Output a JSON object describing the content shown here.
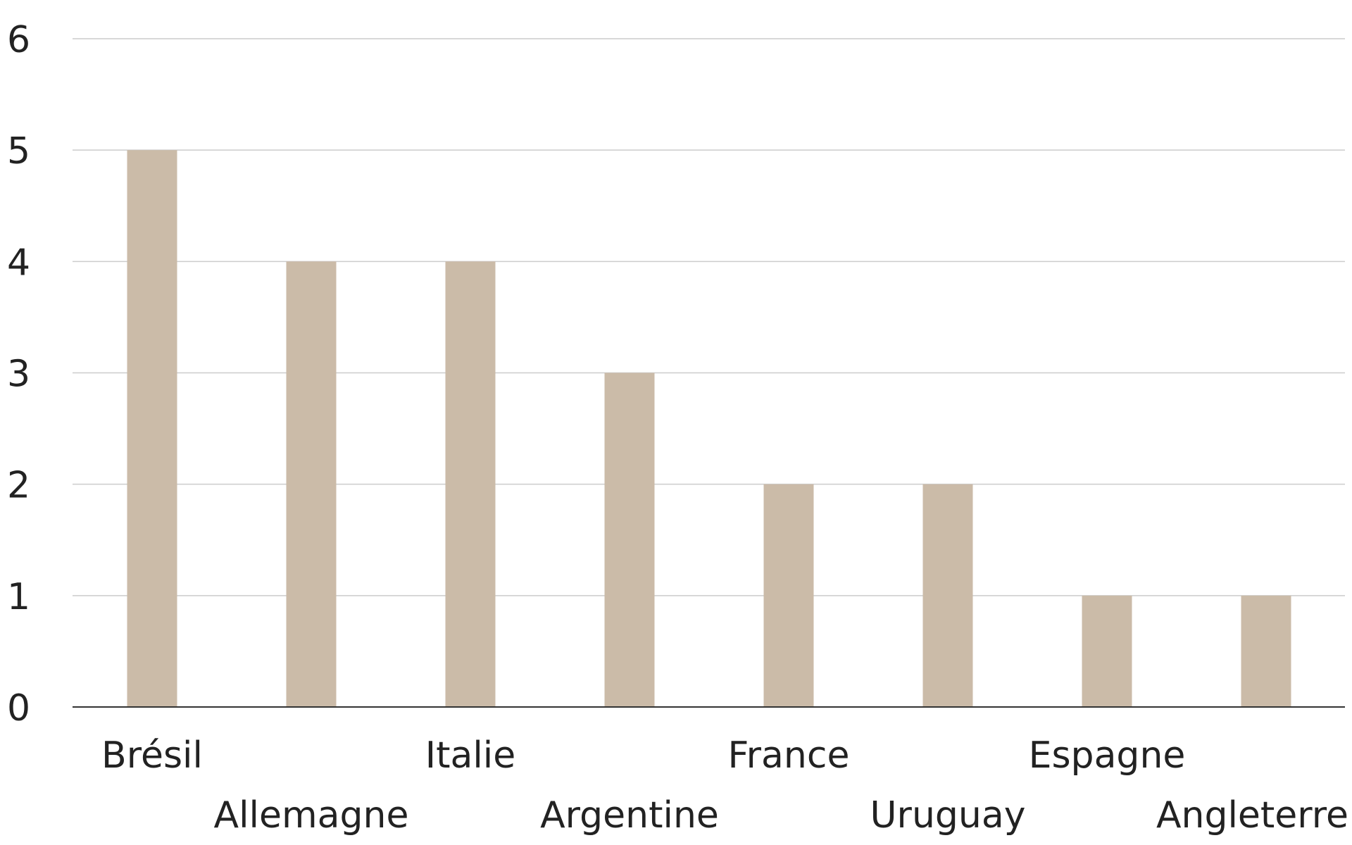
{
  "chart_data": {
    "type": "bar",
    "categories": [
      "Brésil",
      "Allemagne",
      "Italie",
      "Argentine",
      "France",
      "Uruguay",
      "Espagne",
      "Angleterre"
    ],
    "values": [
      5,
      4,
      4,
      3,
      2,
      2,
      1,
      1
    ],
    "title": "",
    "xlabel": "",
    "ylabel": "",
    "ylim": [
      0,
      6
    ],
    "yticks": [
      "0",
      "1",
      "2",
      "3",
      "4",
      "5",
      "6"
    ],
    "grid": true,
    "legend": "none",
    "colors": {
      "bar": "#cbbba8",
      "grid": "#cccccc",
      "axis": "#333333",
      "text": "#222222"
    }
  }
}
